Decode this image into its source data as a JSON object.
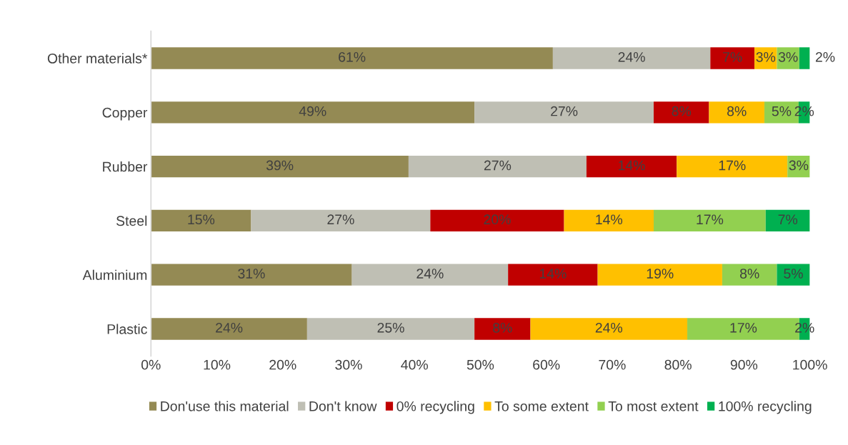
{
  "chart_data": {
    "type": "bar",
    "orientation": "horizontal",
    "stacked": true,
    "categories": [
      "Other materials*",
      "Copper",
      "Rubber",
      "Steel",
      "Aluminium",
      "Plastic"
    ],
    "series": [
      {
        "name": "Don'use this material",
        "color": "#948a54",
        "values": [
          61.0,
          49.1,
          39.1,
          15.2,
          30.5,
          23.7
        ],
        "value_labels": [
          "61%",
          "49%",
          "39%",
          "15%",
          "31%",
          "24%"
        ]
      },
      {
        "name": "Don't know",
        "color": "#bfbfb4",
        "values": [
          23.9,
          27.2,
          27.0,
          27.2,
          23.7,
          25.4
        ],
        "value_labels": [
          "24%",
          "27%",
          "27%",
          "27%",
          "24%",
          "25%"
        ]
      },
      {
        "name": "0% recycling",
        "color": "#c00000",
        "values": [
          6.7,
          8.4,
          13.7,
          20.3,
          13.6,
          8.5
        ],
        "value_labels": [
          "7%",
          "8%",
          "14%",
          "20%",
          "14%",
          "8%"
        ]
      },
      {
        "name": "To some extent",
        "color": "#ffc000",
        "values": [
          3.4,
          8.4,
          16.8,
          13.6,
          18.9,
          23.8
        ],
        "value_labels": [
          "3%",
          "8%",
          "17%",
          "14%",
          "19%",
          "24%"
        ]
      },
      {
        "name": "To most extent",
        "color": "#92d050",
        "values": [
          3.4,
          5.2,
          3.4,
          17.0,
          8.3,
          17.0
        ],
        "value_labels": [
          "3%",
          "5%",
          "3%",
          "17%",
          "8%",
          "17%"
        ]
      },
      {
        "name": "100% recycling",
        "color": "#00b050",
        "values": [
          1.6,
          1.7,
          null,
          6.7,
          5.0,
          1.6
        ],
        "value_labels": [
          "2%",
          "2%",
          null,
          "7%",
          "5%",
          "2%"
        ]
      }
    ],
    "xlim": [
      0,
      100
    ],
    "xticks": [
      {
        "value": 0,
        "label": "0%"
      },
      {
        "value": 10,
        "label": "10%"
      },
      {
        "value": 20,
        "label": "20%"
      },
      {
        "value": 30,
        "label": "30%"
      },
      {
        "value": 40,
        "label": "40%"
      },
      {
        "value": 50,
        "label": "50%"
      },
      {
        "value": 60,
        "label": "60%"
      },
      {
        "value": 70,
        "label": "70%"
      },
      {
        "value": 80,
        "label": "80%"
      },
      {
        "value": 90,
        "label": "90%"
      },
      {
        "value": 100,
        "label": "100%"
      }
    ],
    "grid": false,
    "legend": "bottom"
  }
}
